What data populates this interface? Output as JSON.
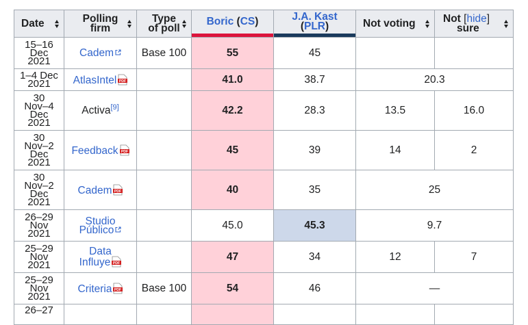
{
  "headers": {
    "date": "Date",
    "firm_line1": "Polling",
    "firm_line2": "firm",
    "type_line1": "Type",
    "type_line2": "of poll",
    "boric_name": "Boric",
    "boric_party": "CS",
    "kast_name": "J.A. Kast",
    "kast_party": "PLR",
    "not_voting": "Not voting",
    "not_sure_line1": "Not",
    "not_sure_line2": "sure",
    "hide": "hide"
  },
  "colors": {
    "boric_bar": "#dc143c",
    "kast_bar": "#1a3a5c",
    "boric_cell": "#ffd1d9",
    "kast_cell": "#cdd8ea",
    "link": "#3366cc"
  },
  "rows": [
    {
      "date": [
        "15–16",
        "Dec",
        "2021"
      ],
      "firm": "Cadem",
      "icon": "external-link",
      "type": "Base 100",
      "boric": "55",
      "kast": "45",
      "not_voting": "",
      "not_sure": ""
    },
    {
      "date": [
        "1–4 Dec",
        "2021"
      ],
      "firm": "AtlasIntel",
      "icon": "pdf",
      "type": "",
      "boric": "41.0",
      "kast": "38.7",
      "merged": "20.3"
    },
    {
      "date": [
        "30",
        "Nov–4",
        "Dec",
        "2021"
      ],
      "firm": "Activa",
      "ref": "[9]",
      "type": "",
      "boric": "42.2",
      "kast": "28.3",
      "not_voting": "13.5",
      "not_sure": "16.0"
    },
    {
      "date": [
        "30",
        "Nov–2",
        "Dec",
        "2021"
      ],
      "firm": "Feedback",
      "icon": "pdf",
      "type": "",
      "boric": "45",
      "kast": "39",
      "not_voting": "14",
      "not_sure": "2"
    },
    {
      "date": [
        "30",
        "Nov–2",
        "Dec",
        "2021"
      ],
      "firm": "Cadem",
      "icon": "pdf",
      "type": "",
      "boric": "40",
      "kast": "35",
      "merged": "25"
    },
    {
      "date": [
        "26–29",
        "Nov",
        "2021"
      ],
      "firm_lines": [
        "Studio",
        "Público"
      ],
      "icon": "external-link",
      "type": "",
      "boric": "45.0",
      "kast": "45.3",
      "merged": "9.7"
    },
    {
      "date": [
        "25–29",
        "Nov",
        "2021"
      ],
      "firm_lines": [
        "Data",
        "Influye"
      ],
      "icon": "pdf",
      "type": "",
      "boric": "47",
      "kast": "34",
      "not_voting": "12",
      "not_sure": "7"
    },
    {
      "date": [
        "25–29",
        "Nov",
        "2021"
      ],
      "firm": "Criteria",
      "icon": "pdf",
      "type": "Base 100",
      "boric": "54",
      "kast": "46",
      "merged": "—"
    },
    {
      "date": [
        "26–27"
      ]
    }
  ]
}
